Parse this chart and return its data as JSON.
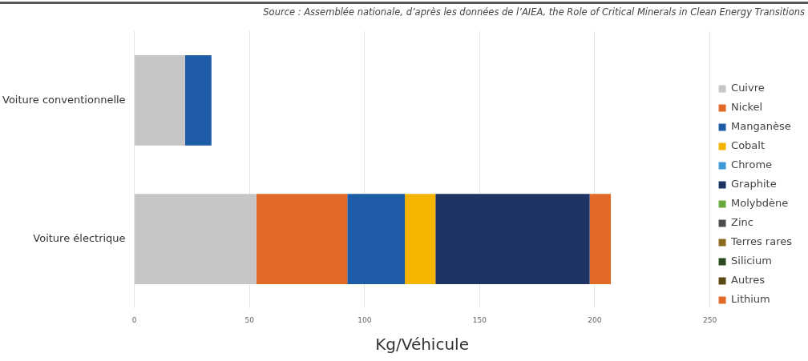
{
  "chart_data": {
    "type": "bar",
    "orientation": "horizontal",
    "stacked": true,
    "xlabel": "Kg/Véhicule",
    "annotations": [
      "Source : Assemblée nationale, d’après les données de l’AIEA, the Role of Critical Minerals in Clean Energy Transitions"
    ],
    "categories": [
      "Voiture conventionnelle",
      "Voiture électrique"
    ],
    "series": [
      {
        "name": "Cuivre",
        "color": "#c8c5c6",
        "values": [
          22,
          53
        ]
      },
      {
        "name": "Nickel",
        "color": "#e06a26",
        "values": [
          0,
          39.5
        ]
      },
      {
        "name": "Manganèse",
        "color": "#1f5ca8",
        "values": [
          11.5,
          25
        ]
      },
      {
        "name": "Cobalt",
        "color": "#f5b400",
        "values": [
          0,
          13.3
        ]
      },
      {
        "name": "Chrome",
        "color": "#3e9ad6",
        "values": [
          0,
          0
        ]
      },
      {
        "name": "Graphite",
        "color": "#1e3464",
        "values": [
          0,
          67
        ]
      },
      {
        "name": "Molybdène",
        "color": "#6aaa3c",
        "values": [
          0,
          0
        ]
      },
      {
        "name": "Zinc",
        "color": "#4d4d4f",
        "values": [
          0,
          0
        ]
      },
      {
        "name": "Terres rares",
        "color": "#8a6a1e",
        "values": [
          0,
          0
        ]
      },
      {
        "name": "Silicium",
        "color": "#2a4a22",
        "values": [
          0,
          0
        ]
      },
      {
        "name": "Autres",
        "color": "#5c4a14",
        "values": [
          0,
          0
        ]
      },
      {
        "name": "Lithium",
        "color": "#e06a26",
        "values": [
          0,
          9.2
        ]
      }
    ],
    "xlim": [
      0,
      250
    ],
    "xticks": [
      0,
      50,
      100,
      150,
      200,
      250
    ],
    "grid": "x",
    "legend": "right"
  }
}
